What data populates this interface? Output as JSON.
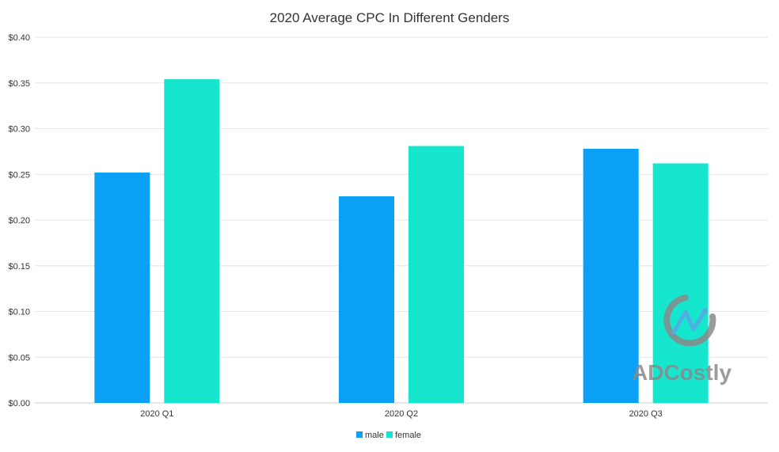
{
  "chart_data": {
    "type": "bar",
    "title": "2020 Average CPC In Different Genders",
    "xlabel": "",
    "ylabel": "",
    "categories": [
      "2020 Q1",
      "2020 Q2",
      "2020 Q3"
    ],
    "series": [
      {
        "name": "male",
        "color": "#0aa0f6",
        "values": [
          0.252,
          0.226,
          0.278
        ]
      },
      {
        "name": "female",
        "color": "#17e6cf",
        "values": [
          0.354,
          0.281,
          0.262
        ]
      }
    ],
    "ylim": [
      0,
      0.4
    ],
    "yticks": [
      "$0.00",
      "$0.05",
      "$0.10",
      "$0.15",
      "$0.20",
      "$0.25",
      "$0.30",
      "$0.35",
      "$0.40"
    ],
    "grid": true,
    "legend_position": "bottom-center"
  },
  "watermark": {
    "text": "ADCostly",
    "icon": "adcostly-logo-icon"
  }
}
